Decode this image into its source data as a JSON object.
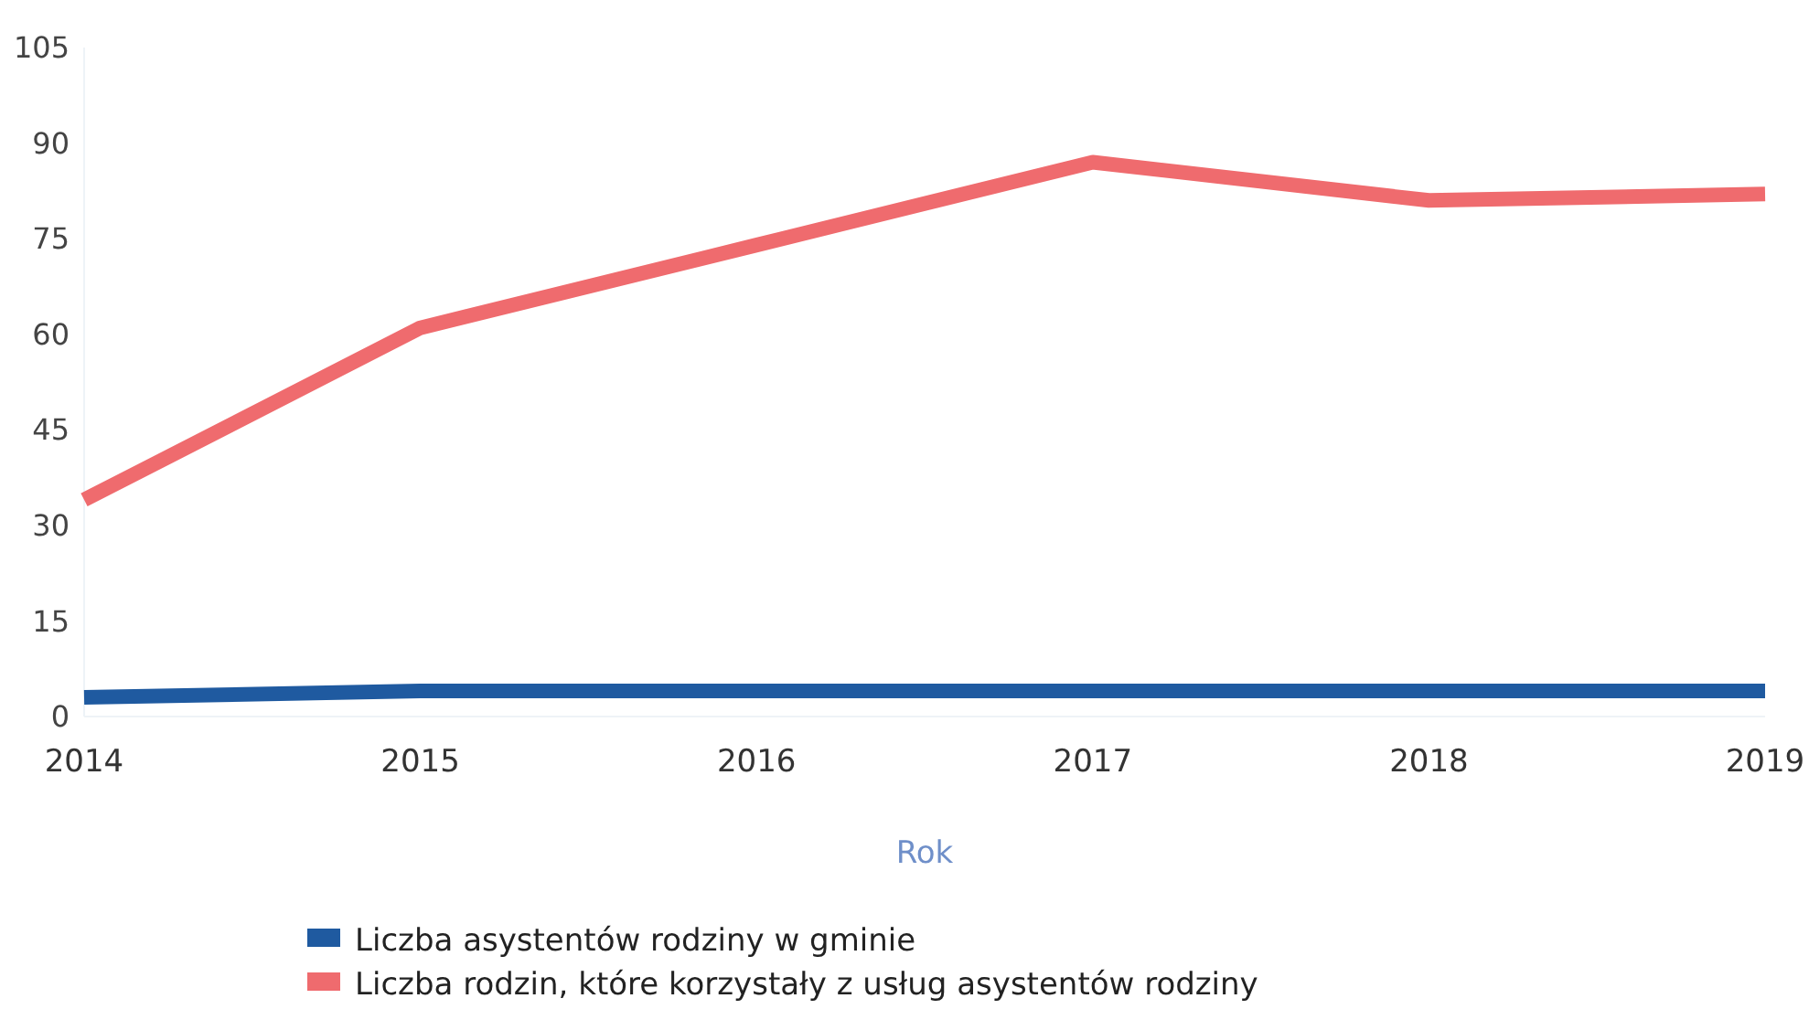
{
  "chart_data": {
    "type": "line",
    "xlabel": "Rok",
    "categories": [
      "2014",
      "2015",
      "2016",
      "2017",
      "2018",
      "2019"
    ],
    "series": [
      {
        "name": "Liczba asystentów rodziny w gminie",
        "color": "#1f5aa0",
        "values": [
          3,
          4,
          4,
          4,
          4,
          4
        ]
      },
      {
        "name": "Liczba rodzin, które korzystały z usług asystentów rodziny",
        "color": "#ef6b6e",
        "values": [
          34,
          61,
          74,
          87,
          81,
          82
        ]
      }
    ],
    "ylim": [
      0,
      105
    ],
    "yticks": [
      0,
      15,
      30,
      45,
      60,
      75,
      90,
      105
    ],
    "legend": "bottom"
  }
}
